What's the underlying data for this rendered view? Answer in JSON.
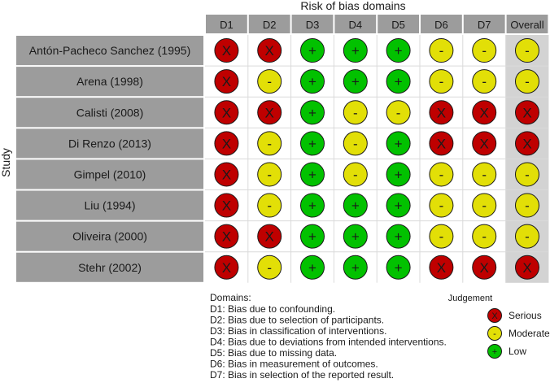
{
  "chart_data": {
    "type": "table",
    "title": "Risk of bias domains",
    "ylabel": "Study",
    "domains": [
      "D1",
      "D2",
      "D3",
      "D4",
      "D5",
      "D6",
      "D7",
      "Overall"
    ],
    "studies": [
      {
        "name": "Antón-Pacheco Sanchez (1995)",
        "judgements": [
          "X",
          "X",
          "+",
          "+",
          "+",
          "-",
          "-",
          "-"
        ]
      },
      {
        "name": "Arena (1998)",
        "judgements": [
          "X",
          "-",
          "+",
          "+",
          "+",
          "-",
          "-",
          "-"
        ]
      },
      {
        "name": "Calisti (2008)",
        "judgements": [
          "X",
          "X",
          "+",
          "-",
          "-",
          "X",
          "X",
          "X"
        ]
      },
      {
        "name": "Di Renzo (2013)",
        "judgements": [
          "X",
          "-",
          "+",
          "-",
          "+",
          "X",
          "X",
          "X"
        ]
      },
      {
        "name": "Gimpel (2010)",
        "judgements": [
          "X",
          "-",
          "+",
          "-",
          "+",
          "-",
          "-",
          "-"
        ]
      },
      {
        "name": "Liu (1994)",
        "judgements": [
          "X",
          "-",
          "+",
          "+",
          "+",
          "-",
          "-",
          "-"
        ]
      },
      {
        "name": "Oliveira (2000)",
        "judgements": [
          "X",
          "X",
          "+",
          "+",
          "+",
          "-",
          "-",
          "-"
        ]
      },
      {
        "name": "Stehr (2002)",
        "judgements": [
          "X",
          "-",
          "+",
          "+",
          "+",
          "X",
          "X",
          "X"
        ]
      }
    ],
    "domains_legend": {
      "heading": "Domains:",
      "items": [
        "D1: Bias due to confounding.",
        "D2: Bias due to selection of participants.",
        "D3: Bias in classification of interventions.",
        "D4: Bias due to deviations from intended interventions.",
        "D5: Bias due to missing data.",
        "D6: Bias in measurement of outcomes.",
        "D7: Bias in selection of the reported result."
      ]
    },
    "judgement_legend": {
      "title": "Judgement",
      "items": [
        {
          "symbol": "X",
          "label": "Serious"
        },
        {
          "symbol": "-",
          "label": "Moderate"
        },
        {
          "symbol": "+",
          "label": "Low"
        }
      ]
    },
    "colors": {
      "X": "#BF0000",
      "-": "#E2DF07",
      "+": "#02C100",
      "header_bg": "#9C9C9C",
      "cell_bg": "#ffffff",
      "overall_bg": "#D3D3D3",
      "grid": "#DADADA"
    }
  }
}
